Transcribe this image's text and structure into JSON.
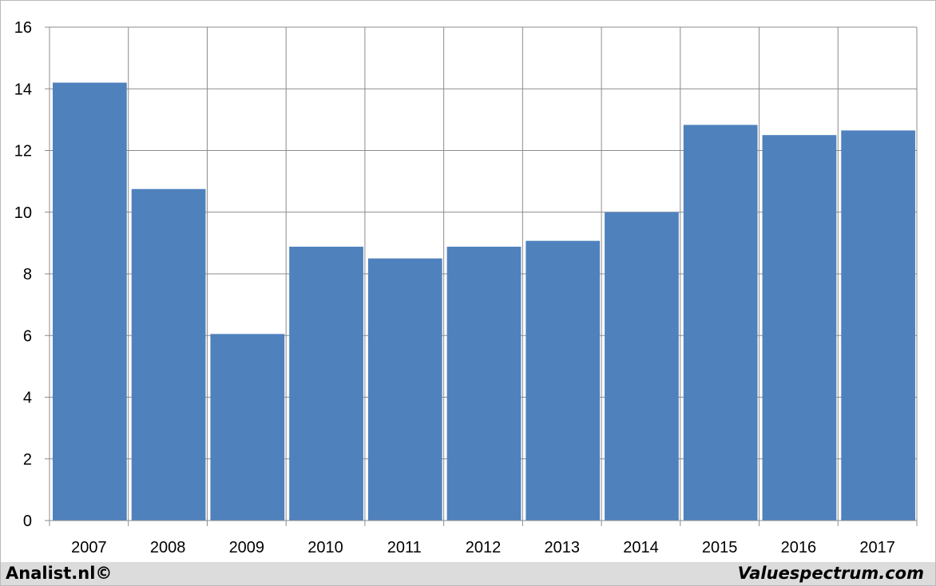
{
  "chart_data": {
    "type": "bar",
    "categories": [
      "2007",
      "2008",
      "2009",
      "2010",
      "2011",
      "2012",
      "2013",
      "2014",
      "2015",
      "2016",
      "2017"
    ],
    "values": [
      14.2,
      10.75,
      6.05,
      8.88,
      8.5,
      8.88,
      9.07,
      10.0,
      12.83,
      12.5,
      12.65
    ],
    "title": "",
    "xlabel": "",
    "ylabel": "",
    "ylim": [
      0,
      16
    ],
    "yticks": [
      "0",
      "2",
      "4",
      "6",
      "8",
      "10",
      "12",
      "14",
      "16"
    ],
    "grid": true,
    "bar_color": "#4F81BD"
  },
  "footer": {
    "left_text": "Analist.nl©",
    "right_text": "Valuespectrum.com"
  },
  "colors": {
    "grid": "#8c8c8c",
    "footer_bg": "#dcdcdc"
  }
}
